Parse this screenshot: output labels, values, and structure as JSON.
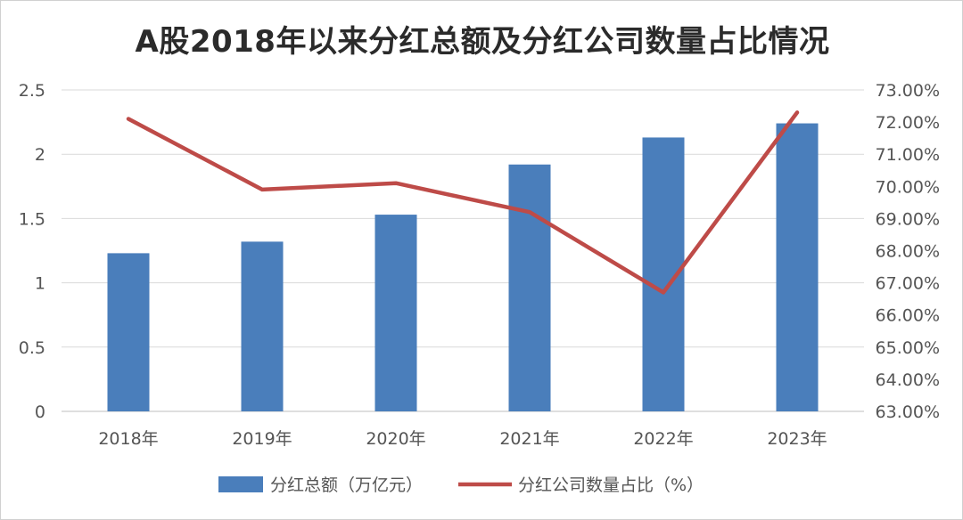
{
  "chart_data": {
    "type": "bar+line",
    "title": "A股2018年以来分红总额及分红公司数量占比情况",
    "categories": [
      "2018年",
      "2019年",
      "2020年",
      "2021年",
      "2022年",
      "2023年"
    ],
    "series": [
      {
        "name": "分红总额（万亿元）",
        "type": "bar",
        "axis": "left",
        "color": "#4a7ebb",
        "values": [
          1.23,
          1.32,
          1.53,
          1.92,
          2.13,
          2.24
        ]
      },
      {
        "name": "分红公司数量占比（%）",
        "type": "line",
        "axis": "right",
        "color": "#be4b48",
        "values": [
          72.1,
          69.9,
          70.1,
          69.2,
          66.7,
          72.3
        ]
      }
    ],
    "y_left": {
      "min": 0,
      "max": 2.5,
      "ticks": [
        "0",
        "0.5",
        "1",
        "1.5",
        "2",
        "2.5"
      ]
    },
    "y_right": {
      "min": 63,
      "max": 73,
      "ticks": [
        "63.00%",
        "64.00%",
        "65.00%",
        "66.00%",
        "67.00%",
        "68.00%",
        "69.00%",
        "70.00%",
        "71.00%",
        "72.00%",
        "73.00%"
      ]
    },
    "grid": true,
    "legend_position": "bottom"
  }
}
